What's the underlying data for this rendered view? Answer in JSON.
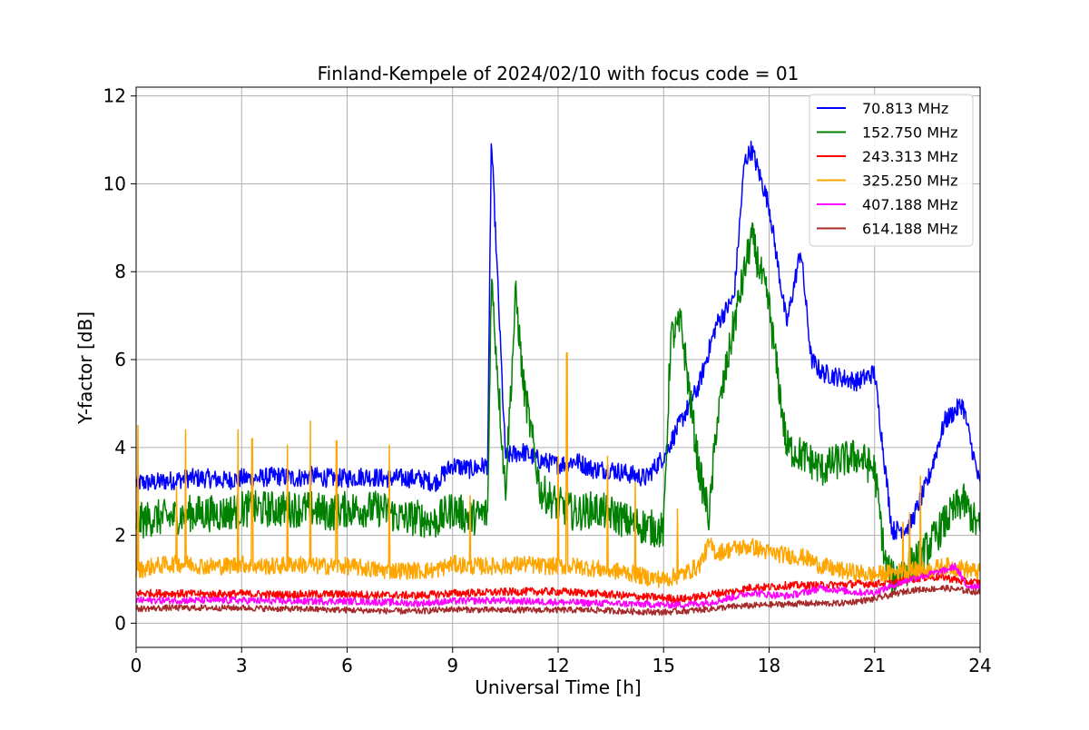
{
  "chart_data": {
    "type": "line",
    "title": "Finland-Kempele of 2024/02/10 with focus code = 01",
    "xlabel": "Universal Time [h]",
    "ylabel": "Y-factor [dB]",
    "xlim": [
      0,
      24
    ],
    "ylim": [
      -0.55,
      12.2
    ],
    "xticks": [
      0,
      3,
      6,
      9,
      12,
      15,
      18,
      21,
      24
    ],
    "yticks": [
      0,
      2,
      4,
      6,
      8,
      10,
      12
    ],
    "grid": true,
    "legend_position": "top-right",
    "series": [
      {
        "name": " 70.813 MHz",
        "color": "#0000ff",
        "x": [
          0,
          0.5,
          1,
          1.5,
          2,
          2.5,
          3,
          3.5,
          4,
          4.5,
          5,
          5.5,
          6,
          6.5,
          7,
          7.5,
          8,
          8.5,
          9,
          9.5,
          10,
          10.1,
          10.5,
          11,
          11.5,
          12,
          12.5,
          13,
          13.5,
          14,
          14.5,
          15,
          15.5,
          16,
          16.5,
          17,
          17.3,
          17.5,
          18,
          18.5,
          18.9,
          19.2,
          19.5,
          20,
          20.5,
          21,
          21.5,
          22,
          22.5,
          23,
          23.5,
          24
        ],
        "y": [
          3.2,
          3.2,
          3.25,
          3.3,
          3.3,
          3.25,
          3.3,
          3.3,
          3.35,
          3.3,
          3.35,
          3.3,
          3.3,
          3.35,
          3.3,
          3.3,
          3.3,
          3.2,
          3.6,
          3.5,
          3.6,
          11.05,
          3.8,
          3.9,
          3.7,
          3.6,
          3.7,
          3.5,
          3.5,
          3.4,
          3.3,
          3.8,
          4.6,
          5.4,
          6.8,
          7.4,
          10.5,
          10.8,
          9.5,
          6.8,
          8.5,
          6.0,
          5.7,
          5.6,
          5.5,
          5.7,
          2.1,
          2.2,
          3.2,
          4.6,
          5.0,
          3.1
        ],
        "noise": 0.22
      },
      {
        "name": "152.750 MHz",
        "color": "#008000",
        "x": [
          0,
          0.5,
          1,
          1.5,
          2,
          2.5,
          3,
          3.5,
          4,
          4.5,
          5,
          5.5,
          6,
          6.5,
          7,
          7.5,
          8,
          8.5,
          9,
          9.5,
          10,
          10.1,
          10.5,
          10.8,
          11,
          11.5,
          12,
          12.5,
          13,
          13.5,
          14,
          14.5,
          15,
          15.2,
          15.5,
          16,
          16.3,
          16.5,
          17,
          17.5,
          18,
          18.5,
          19,
          19.5,
          20,
          20.5,
          21,
          21.3,
          21.5,
          22,
          22.5,
          23,
          23.5,
          24
        ],
        "y": [
          2.3,
          2.4,
          2.4,
          2.5,
          2.5,
          2.5,
          2.6,
          2.6,
          2.6,
          2.6,
          2.6,
          2.5,
          2.6,
          2.6,
          2.6,
          2.4,
          2.4,
          2.3,
          2.6,
          2.4,
          2.5,
          7.9,
          3.0,
          7.5,
          5.5,
          3.0,
          2.7,
          2.5,
          2.6,
          2.5,
          2.3,
          2.2,
          2.1,
          6.5,
          6.8,
          3.5,
          2.4,
          4.5,
          6.8,
          8.8,
          7.2,
          4.0,
          3.8,
          3.5,
          3.7,
          3.8,
          3.5,
          1.4,
          1.0,
          1.3,
          1.7,
          2.3,
          2.8,
          2.1
        ],
        "noise": 0.42
      },
      {
        "name": "243.313 MHz",
        "color": "#ff0000",
        "x": [
          0,
          1,
          2,
          3,
          4,
          5,
          6,
          7,
          8,
          9,
          10,
          11,
          12,
          13,
          14,
          15,
          15.5,
          16,
          16.5,
          17,
          17.5,
          18,
          18.5,
          19,
          19.5,
          20,
          20.5,
          21,
          21.5,
          22,
          22.5,
          23,
          23.5,
          24
        ],
        "y": [
          0.68,
          0.68,
          0.66,
          0.67,
          0.65,
          0.66,
          0.66,
          0.64,
          0.63,
          0.68,
          0.7,
          0.72,
          0.72,
          0.68,
          0.62,
          0.58,
          0.55,
          0.6,
          0.68,
          0.72,
          0.82,
          0.82,
          0.86,
          0.86,
          0.86,
          0.88,
          0.9,
          0.9,
          0.92,
          1.0,
          1.05,
          1.05,
          0.95,
          0.92
        ],
        "noise": 0.09
      },
      {
        "name": "325.250 MHz",
        "color": "#ffa500",
        "x": [
          0,
          0.5,
          1,
          1.5,
          2,
          2.5,
          3,
          3.5,
          4,
          4.5,
          5,
          5.5,
          6,
          6.5,
          7,
          7.5,
          8,
          8.5,
          9,
          9.5,
          10,
          10.5,
          11,
          11.5,
          12,
          12.5,
          13,
          13.5,
          14,
          14.5,
          15,
          15.5,
          16,
          16.3,
          16.5,
          17,
          17.5,
          18,
          18.5,
          19,
          19.5,
          20,
          20.5,
          21,
          21.5,
          22,
          22.5,
          23,
          23.5,
          24
        ],
        "y": [
          1.2,
          1.3,
          1.35,
          1.35,
          1.3,
          1.3,
          1.35,
          1.3,
          1.3,
          1.35,
          1.3,
          1.3,
          1.3,
          1.25,
          1.2,
          1.2,
          1.2,
          1.2,
          1.35,
          1.3,
          1.3,
          1.3,
          1.35,
          1.3,
          1.3,
          1.3,
          1.25,
          1.2,
          1.15,
          1.05,
          1.0,
          1.1,
          1.3,
          1.8,
          1.6,
          1.7,
          1.75,
          1.6,
          1.55,
          1.5,
          1.3,
          1.2,
          1.15,
          1.1,
          1.15,
          1.2,
          1.2,
          1.3,
          1.25,
          1.15
        ],
        "noise": 0.2,
        "spikes": [
          [
            0.05,
            4.5
          ],
          [
            1.15,
            3.1
          ],
          [
            1.4,
            4.4
          ],
          [
            2.9,
            4.4
          ],
          [
            3.3,
            4.2
          ],
          [
            4.3,
            4.05
          ],
          [
            4.95,
            4.6
          ],
          [
            5.7,
            4.15
          ],
          [
            7.2,
            4.05
          ],
          [
            9.5,
            2.9
          ],
          [
            12.0,
            3.8
          ],
          [
            12.25,
            6.15
          ],
          [
            13.4,
            3.8
          ],
          [
            14.2,
            3.2
          ],
          [
            15.4,
            2.6
          ],
          [
            21.8,
            2.3
          ],
          [
            22.0,
            2.5
          ],
          [
            22.3,
            3.35
          ]
        ]
      },
      {
        "name": "407.188 MHz",
        "color": "#ff00ff",
        "x": [
          0,
          1,
          2,
          3,
          4,
          5,
          6,
          7,
          8,
          9,
          10,
          11,
          12,
          13,
          14,
          15,
          15.5,
          16,
          16.5,
          17,
          17.5,
          18,
          18.5,
          19,
          19.5,
          20,
          20.5,
          21,
          21.5,
          22,
          22.5,
          23,
          23.3,
          23.6,
          24
        ],
        "y": [
          0.52,
          0.52,
          0.52,
          0.52,
          0.5,
          0.5,
          0.5,
          0.48,
          0.45,
          0.5,
          0.52,
          0.5,
          0.48,
          0.46,
          0.44,
          0.42,
          0.42,
          0.45,
          0.5,
          0.6,
          0.7,
          0.65,
          0.62,
          0.7,
          0.8,
          0.75,
          0.7,
          0.7,
          0.85,
          1.0,
          1.1,
          1.2,
          1.3,
          0.85,
          0.85
        ],
        "noise": 0.08
      },
      {
        "name": "614.188 MHz",
        "color": "#a52a2a",
        "x": [
          0,
          1,
          2,
          3,
          4,
          5,
          6,
          7,
          8,
          9,
          10,
          11,
          12,
          13,
          14,
          15,
          16,
          17,
          18,
          19,
          20,
          21,
          22,
          23,
          24
        ],
        "y": [
          0.33,
          0.35,
          0.35,
          0.35,
          0.33,
          0.32,
          0.3,
          0.28,
          0.27,
          0.32,
          0.3,
          0.3,
          0.3,
          0.3,
          0.27,
          0.25,
          0.3,
          0.38,
          0.42,
          0.45,
          0.45,
          0.55,
          0.75,
          0.8,
          0.7
        ],
        "noise": 0.07
      }
    ]
  }
}
